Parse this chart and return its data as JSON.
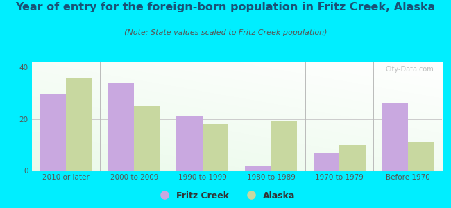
{
  "title": "Year of entry for the foreign-born population in Fritz Creek, Alaska",
  "subtitle": "(Note: State values scaled to Fritz Creek population)",
  "categories": [
    "2010 or later",
    "2000 to 2009",
    "1990 to 1999",
    "1980 to 1989",
    "1970 to 1979",
    "Before 1970"
  ],
  "fritz_creek": [
    30,
    34,
    21,
    2,
    7,
    26
  ],
  "alaska": [
    36,
    25,
    18,
    19,
    10,
    11
  ],
  "fritz_color": "#c9a8e0",
  "alaska_color": "#c8d8a0",
  "bg_color": "#00eeff",
  "plot_bg_top": "#f5f5f5",
  "plot_bg_bottom": "#d8eed8",
  "ylim": [
    0,
    42
  ],
  "yticks": [
    0,
    20,
    40
  ],
  "bar_width": 0.38,
  "title_fontsize": 11.5,
  "subtitle_fontsize": 8,
  "tick_fontsize": 7.5,
  "legend_fontsize": 9
}
